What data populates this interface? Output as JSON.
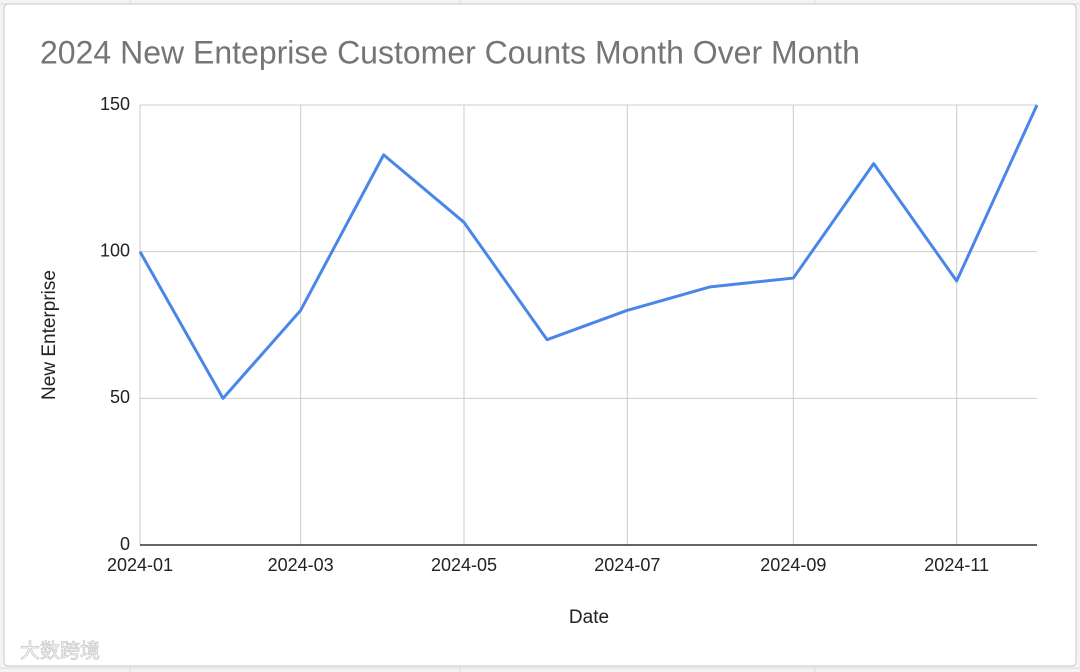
{
  "chart_data": {
    "type": "line",
    "title": "2024 New Enteprise Customer Counts Month Over Month",
    "x_label": "Date",
    "y_label": "New Enterprise",
    "x": [
      "2024-01",
      "2024-02",
      "2024-03",
      "2024-04",
      "2024-05",
      "2024-06",
      "2024-07",
      "2024-08",
      "2024-09",
      "2024-10",
      "2024-11",
      "2024-12"
    ],
    "series": [
      {
        "name": "New Enterprise",
        "color": "#4a86e8",
        "values": [
          100,
          50,
          80,
          133,
          110,
          70,
          80,
          88,
          91,
          130,
          90,
          150
        ]
      }
    ],
    "xlim": [
      "2024-01",
      "2024-12"
    ],
    "xticks": [
      "2024-01",
      "2024-03",
      "2024-05",
      "2024-07",
      "2024-09",
      "2024-11"
    ],
    "ylim": [
      0,
      150
    ],
    "yticks": [
      0,
      50,
      100,
      150
    ],
    "grid": true,
    "watermark": "大数跨境"
  }
}
